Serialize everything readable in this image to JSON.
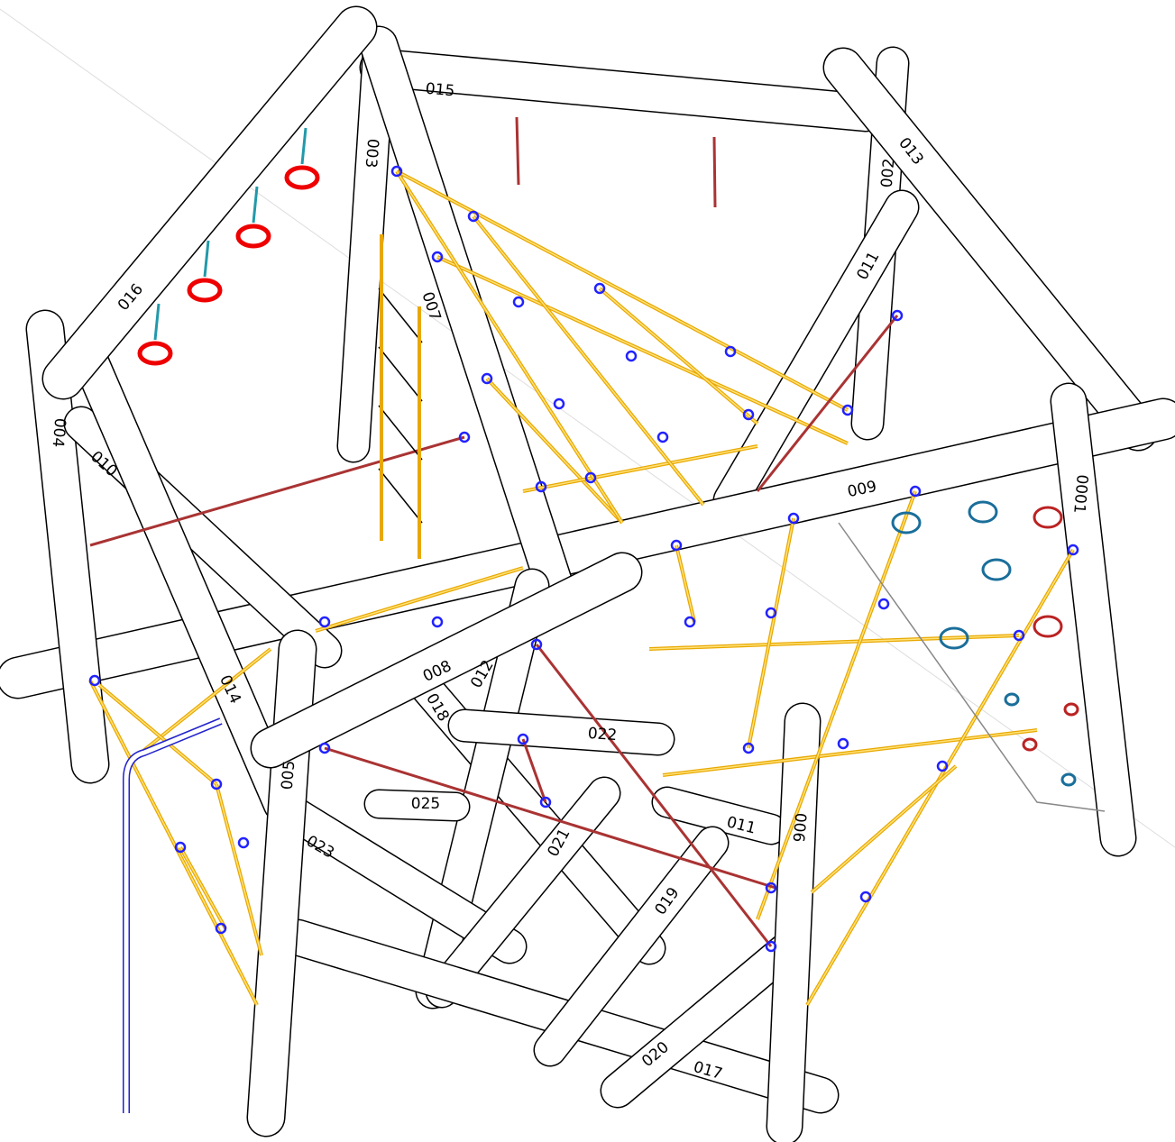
{
  "labels": [
    "015",
    "003",
    "007",
    "016",
    "004",
    "010",
    "014",
    "005",
    "008",
    "012",
    "018",
    "022",
    "025",
    "021",
    "023",
    "019",
    "020",
    "017",
    "006",
    "011",
    "011",
    "009",
    "013",
    "002",
    "0001"
  ]
}
